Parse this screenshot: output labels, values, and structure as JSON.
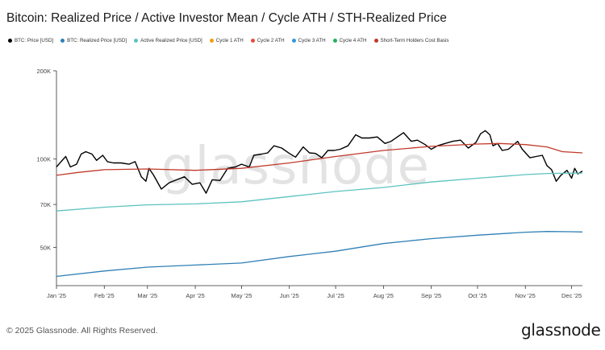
{
  "title": "Bitcoin: Realized Price / Active Investor Mean / Cycle ATH / STH-Realized Price",
  "footer": "© 2025 Glassnode. All Rights Reserved.",
  "brand": "glassnode",
  "watermark": "glassnode",
  "colors": {
    "btc_price": "#000000",
    "realized_price": "#2f7fb5",
    "active_realized_price": "#5cc3c0",
    "cycle1_ath": "#f39c12",
    "cycle2_ath": "#e74c3c",
    "cycle3_ath": "#3498db",
    "cycle4_ath": "#27ae60",
    "sth_cost_basis": "#c0392b"
  },
  "legend": [
    {
      "label": "BTC: Price [USD]",
      "color": "#000000"
    },
    {
      "label": "BTC: Realized Price [USD]",
      "color": "#2f7fb5"
    },
    {
      "label": "Active Realized Price [USD]",
      "color": "#5cc3c0"
    },
    {
      "label": "Cycle 1 ATH",
      "color": "#f39c12"
    },
    {
      "label": "Cycle 2 ATH",
      "color": "#e74c3c"
    },
    {
      "label": "Cycle 3 ATH",
      "color": "#3498db"
    },
    {
      "label": "Cycle 4 ATH",
      "color": "#27ae60"
    },
    {
      "label": "Short-Term Holders Cost Basis",
      "color": "#c0392b"
    }
  ],
  "chart_data": {
    "type": "line",
    "title": "Bitcoin: Realized Price / Active Investor Mean / Cycle ATH / STH-Realized Price",
    "yscale": "log",
    "ylim": [
      37000,
      200000
    ],
    "xlim": [
      "2025-01-01",
      "2025-12-08"
    ],
    "y_ticks": [
      {
        "label": "50K",
        "value": 50000
      },
      {
        "label": "70K",
        "value": 70000
      },
      {
        "label": "100K",
        "value": 100000
      },
      {
        "label": "200K",
        "value": 200000
      }
    ],
    "x_ticks": [
      {
        "label": "Jan '25",
        "date": "2025-01-01"
      },
      {
        "label": "Feb '25",
        "date": "2025-02-01"
      },
      {
        "label": "Mar '25",
        "date": "2025-03-01"
      },
      {
        "label": "Apr '25",
        "date": "2025-04-01"
      },
      {
        "label": "May '25",
        "date": "2025-05-01"
      },
      {
        "label": "Jun '25",
        "date": "2025-06-01"
      },
      {
        "label": "Jul '25",
        "date": "2025-07-01"
      },
      {
        "label": "Aug '25",
        "date": "2025-08-01"
      },
      {
        "label": "Sep '25",
        "date": "2025-09-01"
      },
      {
        "label": "Oct '25",
        "date": "2025-10-01"
      },
      {
        "label": "Nov '25",
        "date": "2025-11-01"
      },
      {
        "label": "Dec '25",
        "date": "2025-12-01"
      }
    ],
    "series": [
      {
        "name": "BTC: Price [USD]",
        "color": "#000000",
        "points": [
          [
            "2025-01-01",
            94000
          ],
          [
            "2025-01-04",
            98000
          ],
          [
            "2025-01-07",
            102000
          ],
          [
            "2025-01-10",
            94000
          ],
          [
            "2025-01-14",
            96000
          ],
          [
            "2025-01-17",
            104000
          ],
          [
            "2025-01-20",
            106000
          ],
          [
            "2025-01-24",
            104000
          ],
          [
            "2025-01-27",
            99000
          ],
          [
            "2025-01-31",
            103000
          ],
          [
            "2025-02-03",
            98000
          ],
          [
            "2025-02-07",
            97000
          ],
          [
            "2025-02-12",
            97000
          ],
          [
            "2025-02-17",
            96000
          ],
          [
            "2025-02-21",
            98000
          ],
          [
            "2025-02-25",
            87000
          ],
          [
            "2025-02-28",
            84000
          ],
          [
            "2025-03-02",
            93000
          ],
          [
            "2025-03-05",
            88000
          ],
          [
            "2025-03-10",
            79000
          ],
          [
            "2025-03-15",
            83000
          ],
          [
            "2025-03-20",
            85000
          ],
          [
            "2025-03-25",
            87000
          ],
          [
            "2025-03-30",
            82000
          ],
          [
            "2025-04-04",
            83000
          ],
          [
            "2025-04-08",
            76500
          ],
          [
            "2025-04-12",
            85000
          ],
          [
            "2025-04-17",
            84500
          ],
          [
            "2025-04-22",
            93000
          ],
          [
            "2025-04-27",
            94000
          ],
          [
            "2025-05-01",
            96000
          ],
          [
            "2025-05-06",
            94000
          ],
          [
            "2025-05-09",
            103000
          ],
          [
            "2025-05-14",
            104000
          ],
          [
            "2025-05-18",
            105000
          ],
          [
            "2025-05-22",
            111000
          ],
          [
            "2025-05-27",
            109000
          ],
          [
            "2025-06-01",
            104500
          ],
          [
            "2025-06-05",
            101500
          ],
          [
            "2025-06-10",
            110000
          ],
          [
            "2025-06-14",
            105000
          ],
          [
            "2025-06-18",
            104500
          ],
          [
            "2025-06-22",
            101000
          ],
          [
            "2025-06-26",
            107000
          ],
          [
            "2025-06-30",
            107000
          ],
          [
            "2025-07-04",
            108000
          ],
          [
            "2025-07-09",
            111000
          ],
          [
            "2025-07-14",
            121000
          ],
          [
            "2025-07-18",
            118000
          ],
          [
            "2025-07-23",
            118000
          ],
          [
            "2025-07-28",
            119000
          ],
          [
            "2025-08-02",
            113000
          ],
          [
            "2025-08-06",
            115000
          ],
          [
            "2025-08-10",
            119000
          ],
          [
            "2025-08-14",
            123000
          ],
          [
            "2025-08-19",
            115000
          ],
          [
            "2025-08-23",
            116000
          ],
          [
            "2025-08-28",
            112000
          ],
          [
            "2025-09-01",
            108000
          ],
          [
            "2025-09-05",
            111000
          ],
          [
            "2025-09-10",
            113000
          ],
          [
            "2025-09-15",
            115000
          ],
          [
            "2025-09-20",
            116000
          ],
          [
            "2025-09-25",
            109000
          ],
          [
            "2025-09-30",
            114000
          ],
          [
            "2025-10-03",
            122000
          ],
          [
            "2025-10-06",
            125000
          ],
          [
            "2025-10-09",
            121000
          ],
          [
            "2025-10-11",
            111000
          ],
          [
            "2025-10-14",
            113000
          ],
          [
            "2025-10-17",
            107000
          ],
          [
            "2025-10-21",
            108000
          ],
          [
            "2025-10-27",
            115000
          ],
          [
            "2025-10-30",
            108000
          ],
          [
            "2025-11-04",
            101000
          ],
          [
            "2025-11-08",
            102000
          ],
          [
            "2025-11-12",
            103000
          ],
          [
            "2025-11-15",
            95000
          ],
          [
            "2025-11-18",
            92000
          ],
          [
            "2025-11-21",
            84000
          ],
          [
            "2025-11-24",
            88000
          ],
          [
            "2025-11-28",
            91500
          ],
          [
            "2025-12-01",
            86000
          ],
          [
            "2025-12-03",
            93000
          ],
          [
            "2025-12-05",
            89000
          ],
          [
            "2025-12-08",
            91000
          ]
        ]
      },
      {
        "name": "BTC: Realized Price [USD]",
        "color": "#2f7fb5",
        "points": [
          [
            "2025-01-01",
            39800
          ],
          [
            "2025-02-01",
            41500
          ],
          [
            "2025-03-01",
            42800
          ],
          [
            "2025-04-01",
            43500
          ],
          [
            "2025-05-01",
            44200
          ],
          [
            "2025-06-01",
            46500
          ],
          [
            "2025-07-01",
            48500
          ],
          [
            "2025-08-01",
            51500
          ],
          [
            "2025-09-01",
            53500
          ],
          [
            "2025-10-01",
            55000
          ],
          [
            "2025-11-01",
            56300
          ],
          [
            "2025-11-15",
            56600
          ],
          [
            "2025-12-01",
            56500
          ],
          [
            "2025-12-08",
            56400
          ]
        ]
      },
      {
        "name": "Active Realized Price [USD]",
        "color": "#5cc3c0",
        "points": [
          [
            "2025-01-01",
            66500
          ],
          [
            "2025-02-01",
            68500
          ],
          [
            "2025-03-01",
            69800
          ],
          [
            "2025-04-01",
            70300
          ],
          [
            "2025-05-01",
            71500
          ],
          [
            "2025-06-01",
            74500
          ],
          [
            "2025-07-01",
            77500
          ],
          [
            "2025-08-01",
            80000
          ],
          [
            "2025-09-01",
            83500
          ],
          [
            "2025-10-01",
            86000
          ],
          [
            "2025-11-01",
            88500
          ],
          [
            "2025-11-15",
            89300
          ],
          [
            "2025-12-01",
            89500
          ],
          [
            "2025-12-08",
            89600
          ]
        ]
      },
      {
        "name": "Short-Term Holders Cost Basis",
        "color": "#c0392b",
        "points": [
          [
            "2025-01-01",
            88000
          ],
          [
            "2025-01-15",
            90000
          ],
          [
            "2025-02-01",
            92000
          ],
          [
            "2025-03-01",
            92500
          ],
          [
            "2025-04-01",
            91500
          ],
          [
            "2025-05-01",
            93000
          ],
          [
            "2025-06-01",
            97000
          ],
          [
            "2025-07-01",
            102000
          ],
          [
            "2025-08-01",
            107000
          ],
          [
            "2025-09-01",
            110500
          ],
          [
            "2025-10-01",
            112500
          ],
          [
            "2025-10-15",
            113000
          ],
          [
            "2025-11-01",
            112000
          ],
          [
            "2025-11-15",
            110000
          ],
          [
            "2025-11-25",
            106000
          ],
          [
            "2025-12-08",
            105000
          ]
        ]
      }
    ]
  }
}
